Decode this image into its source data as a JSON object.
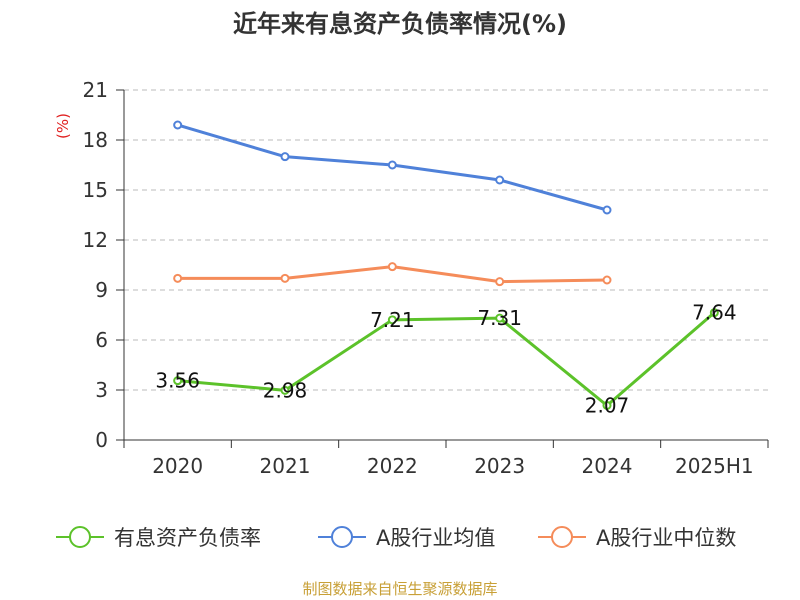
{
  "chart_data": {
    "type": "line",
    "title": "近年来有息资产负债率情况(%)",
    "ylabel": "(%)",
    "categories": [
      "2020",
      "2021",
      "2022",
      "2023",
      "2024",
      "2025H1"
    ],
    "ylim": [
      0,
      21
    ],
    "yticks": [
      0,
      3,
      6,
      9,
      12,
      15,
      18,
      21
    ],
    "grid": "horizontal-dashed",
    "legend_position": "bottom",
    "series": [
      {
        "name": "有息资产负债率",
        "color": "#5cc22a",
        "values": [
          3.56,
          2.98,
          7.21,
          7.31,
          2.07,
          7.64
        ],
        "labels_shown": true
      },
      {
        "name": "A股行业均值",
        "color": "#4f81d9",
        "values": [
          18.9,
          17.0,
          16.5,
          15.6,
          13.8,
          null
        ],
        "labels_shown": false
      },
      {
        "name": "A股行业中位数",
        "color": "#f58c5a",
        "values": [
          9.7,
          9.7,
          10.4,
          9.5,
          9.6,
          null
        ],
        "labels_shown": false
      }
    ],
    "source": "制图数据来自恒生聚源数据库"
  }
}
